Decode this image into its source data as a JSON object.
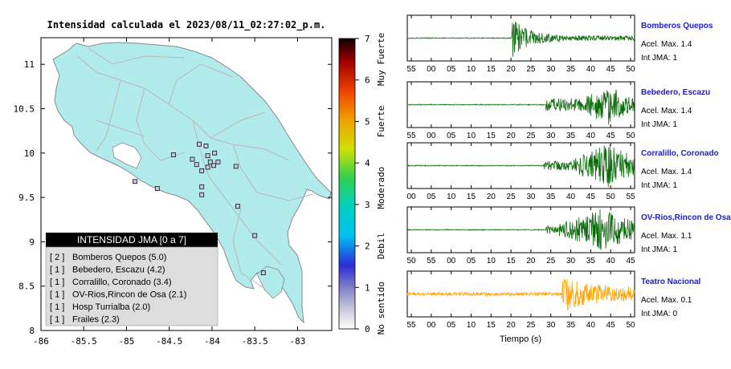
{
  "title": "Intensidad calculada el 2023/08/11_02:27:02_p.m.",
  "colors": {
    "land": "#b1ebeb",
    "land_stroke": "#888888",
    "station": "#3333cc",
    "ok_trace": "#0c6b0c",
    "alert_trace": "#ffa500",
    "station_name": "#1a1ad6",
    "legend_header_bg": "#000000",
    "legend_body_bg": "#dddddd"
  },
  "map": {
    "x_ticks": [
      "-86",
      "-85.5",
      "-85",
      "-84.5",
      "-84",
      "-83.5",
      "-83"
    ],
    "y_ticks": [
      "11",
      "10.5",
      "10",
      "9.5",
      "9",
      "8.5",
      "8"
    ]
  },
  "colorbar": {
    "ticks": [
      "0",
      "1",
      "2",
      "3",
      "4",
      "5",
      "6",
      "7"
    ],
    "labels": [
      "No sentido",
      "Debil",
      "Moderado",
      "Fuerte",
      "Muy Fuerte"
    ]
  },
  "legend": {
    "header": "INTENSIDAD JMA [0 a 7]",
    "items": [
      {
        "count": "[ 2 ]",
        "name": "Bomberos Quepos (5.0)"
      },
      {
        "count": "[ 1 ]",
        "name": "Bebedero, Escazu (4.2)"
      },
      {
        "count": "[ 1 ]",
        "name": "Corralillo, Coronado (3.4)"
      },
      {
        "count": "[ 1 ]",
        "name": "OV-Rios,Rincon de Osa (2.1)"
      },
      {
        "count": "[ 1 ]",
        "name": "Hosp Turrialba (2.0)"
      },
      {
        "count": "[ 1 ]",
        "name": "Frailes (2.3)"
      }
    ]
  },
  "waveforms": {
    "xlabel": "Tiempo (s)",
    "panels": [
      {
        "station": "Bomberos Quepos",
        "accel": "Acel. Max. 1.4",
        "intensity": "Int JMA: 1",
        "ticks": [
          "55",
          "00",
          "05",
          "10",
          "15",
          "20",
          "25",
          "30",
          "35",
          "40",
          "45",
          "50"
        ],
        "onset_frac": 0.46,
        "color": "ok"
      },
      {
        "station": "Bebedero, Escazu",
        "accel": "Acel. Max. 1.4",
        "intensity": "Int JMA: 1",
        "ticks": [
          "55",
          "00",
          "05",
          "10",
          "15",
          "20",
          "25",
          "30",
          "35",
          "40",
          "45",
          "50"
        ],
        "onset_frac": 0.61,
        "color": "ok"
      },
      {
        "station": "Corralillo, Coronado",
        "accel": "Acel. Max. 1.4",
        "intensity": "Int JMA: 1",
        "ticks": [
          "00",
          "05",
          "10",
          "15",
          "20",
          "25",
          "30",
          "35",
          "40",
          "45",
          "50",
          "55"
        ],
        "onset_frac": 0.6,
        "color": "ok"
      },
      {
        "station": "OV-Rios,Rincon de Osa",
        "accel": "Acel. Max. 1.1",
        "intensity": "Int JMA: 1",
        "ticks": [
          "50",
          "55",
          "00",
          "05",
          "10",
          "15",
          "20",
          "25",
          "30",
          "35",
          "40",
          "45"
        ],
        "onset_frac": 0.61,
        "color": "ok"
      },
      {
        "station": "Teatro Nacional",
        "accel": "Acel. Max. 0.1",
        "intensity": "Int JMA: 0",
        "ticks": [
          "55",
          "00",
          "05",
          "10",
          "15",
          "20",
          "25",
          "30",
          "35",
          "40",
          "45",
          "50"
        ],
        "onset_frac": 0.68,
        "color": "alert"
      }
    ]
  },
  "chart_data": [
    {
      "type": "scatter",
      "title": "Intensidad calculada el 2023/08/11_02:27:02_p.m.",
      "xlim": [
        -86,
        -82.6
      ],
      "ylim": [
        8,
        11.3
      ],
      "x": [
        -84.23,
        -84.05,
        -83.98,
        -84.12,
        -84.02,
        -83.93,
        -83.72,
        -84.15,
        -84.45,
        -84.64,
        -84.9,
        -84.12,
        -84.12,
        -83.7,
        -83.4,
        -83.5,
        -84.07,
        -84.18,
        -83.97,
        -84.05
      ],
      "y": [
        9.93,
        9.97,
        9.86,
        9.8,
        9.9,
        9.9,
        9.85,
        10.1,
        9.98,
        9.6,
        9.68,
        9.53,
        9.62,
        9.4,
        8.65,
        9.07,
        10.08,
        9.87,
        10.0,
        9.84
      ],
      "colorbar": {
        "range": [
          0,
          7
        ],
        "label_words": [
          "No sentido",
          "Debil",
          "Moderado",
          "Fuerte",
          "Muy Fuerte"
        ]
      },
      "legend": "bottom-left",
      "grid": true
    },
    {
      "type": "line",
      "xlabel": "Tiempo (s)",
      "series": [
        {
          "name": "Bomberos Quepos"
        },
        {
          "name": "Bebedero, Escazu"
        },
        {
          "name": "Corralillo, Coronado"
        },
        {
          "name": "OV-Rios,Rincon de Osa"
        },
        {
          "name": "Teatro Nacional"
        }
      ]
    }
  ]
}
